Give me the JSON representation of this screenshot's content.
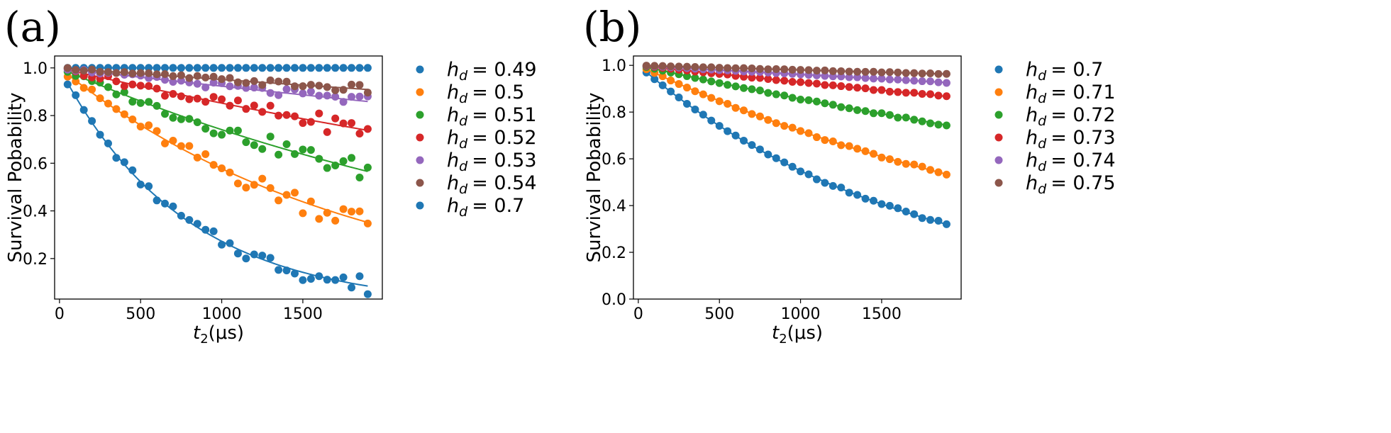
{
  "chart_data": [
    {
      "panel_label": "(a)",
      "type": "scatter",
      "xlabel_base": "t",
      "xlabel_sub": "2",
      "xlabel_unit": "(μs)",
      "ylabel": "Survival Pobability",
      "xlim": [
        -30,
        1990
      ],
      "ylim": [
        0.03,
        1.05
      ],
      "xticks": [
        0,
        500,
        1000,
        1500
      ],
      "yticks": [
        0.2,
        0.4,
        0.6,
        0.8,
        1.0
      ],
      "ytick_labels": [
        "0.2",
        "0.4",
        "0.6",
        "0.8",
        "1.0"
      ],
      "legend_location": "outside-right",
      "series": [
        {
          "name": "h_d = 0.49",
          "legend_var": "h",
          "legend_sub": "d",
          "legend_value": "= 0.49",
          "color": "#1f77b4",
          "fit_decay": 0.0,
          "noise_amp": 0.0
        },
        {
          "name": "h_d = 0.5",
          "legend_var": "h",
          "legend_sub": "d",
          "legend_value": "= 0.5",
          "color": "#ff7f0e",
          "fit_decay": 0.00055,
          "noise_amp": 0.05
        },
        {
          "name": "h_d = 0.51",
          "legend_var": "h",
          "legend_sub": "d",
          "legend_value": "= 0.51",
          "color": "#2ca02c",
          "fit_decay": 0.0003,
          "noise_amp": 0.04
        },
        {
          "name": "h_d = 0.52",
          "legend_var": "h",
          "legend_sub": "d",
          "legend_value": "= 0.52",
          "color": "#d62728",
          "fit_decay": 0.00016,
          "noise_amp": 0.035
        },
        {
          "name": "h_d = 0.53",
          "legend_var": "h",
          "legend_sub": "d",
          "legend_value": "= 0.53",
          "color": "#9467bd",
          "fit_decay": 8e-05,
          "noise_amp": 0.02
        },
        {
          "name": "h_d = 0.54",
          "legend_var": "h",
          "legend_sub": "d",
          "legend_value": "= 0.54",
          "color": "#8c564b",
          "fit_decay": 5e-05,
          "noise_amp": 0.015
        },
        {
          "name": "h_d = 0.7",
          "legend_var": "h",
          "legend_sub": "d",
          "legend_value": "= 0.7",
          "color": "#1f77b4",
          "fit_decay": 0.0013,
          "noise_amp": 0.035
        }
      ]
    },
    {
      "panel_label": "(b)",
      "type": "scatter",
      "xlabel_base": "t",
      "xlabel_sub": "2",
      "xlabel_unit": "(μs)",
      "ylabel": "Survival Pobability",
      "xlim": [
        -30,
        1990
      ],
      "ylim": [
        0.0,
        1.04
      ],
      "xticks": [
        0,
        500,
        1000,
        1500
      ],
      "yticks": [
        0.0,
        0.2,
        0.4,
        0.6,
        0.8,
        1.0
      ],
      "ytick_labels": [
        "0.0",
        "0.2",
        "0.4",
        "0.6",
        "0.8",
        "1.0"
      ],
      "legend_location": "outside-right",
      "series": [
        {
          "name": "h_d = 0.7",
          "legend_var": "h",
          "legend_sub": "d",
          "legend_value": "= 0.7",
          "color": "#1f77b4",
          "fit_decay": 0.0006,
          "noise_amp": 0.006
        },
        {
          "name": "h_d = 0.71",
          "legend_var": "h",
          "legend_sub": "d",
          "legend_value": "= 0.71",
          "color": "#ff7f0e",
          "fit_decay": 0.00033,
          "noise_amp": 0.005
        },
        {
          "name": "h_d = 0.72",
          "legend_var": "h",
          "legend_sub": "d",
          "legend_value": "= 0.72",
          "color": "#2ca02c",
          "fit_decay": 0.000155,
          "noise_amp": 0.004
        },
        {
          "name": "h_d = 0.73",
          "legend_var": "h",
          "legend_sub": "d",
          "legend_value": "= 0.73",
          "color": "#d62728",
          "fit_decay": 7.5e-05,
          "noise_amp": 0.003
        },
        {
          "name": "h_d = 0.74",
          "legend_var": "h",
          "legend_sub": "d",
          "legend_value": "= 0.74",
          "color": "#9467bd",
          "fit_decay": 4e-05,
          "noise_amp": 0.002
        },
        {
          "name": "h_d = 0.75",
          "legend_var": "h",
          "legend_sub": "d",
          "legend_value": "= 0.75",
          "color": "#8c564b",
          "fit_decay": 2e-05,
          "noise_amp": 0.002
        }
      ]
    }
  ],
  "x_samples": [
    50,
    100,
    150,
    200,
    250,
    300,
    350,
    400,
    450,
    500,
    550,
    600,
    650,
    700,
    750,
    800,
    850,
    900,
    950,
    1000,
    1050,
    1100,
    1150,
    1200,
    1250,
    1300,
    1350,
    1400,
    1450,
    1500,
    1550,
    1600,
    1650,
    1700,
    1750,
    1800,
    1850,
    1900
  ]
}
